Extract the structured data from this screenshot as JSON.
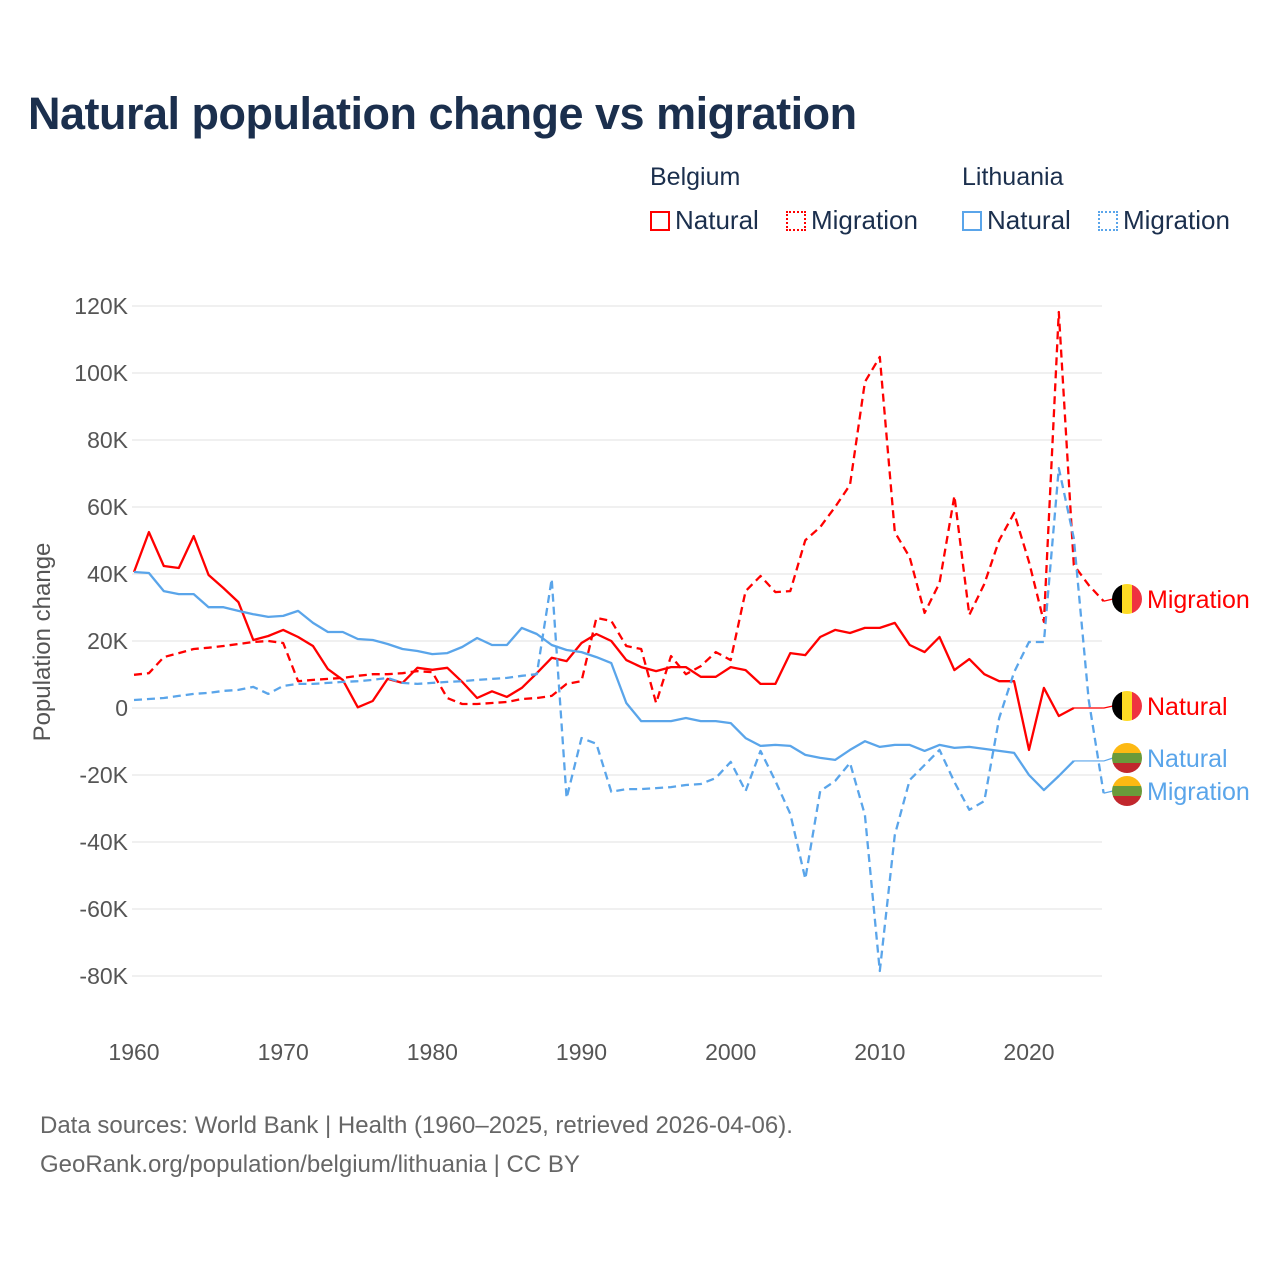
{
  "title": "Natural population change vs migration",
  "legend": {
    "groups": [
      {
        "name": "Belgium",
        "color": "#ff0000",
        "items": [
          "Natural",
          "Migration"
        ]
      },
      {
        "name": "Lithuania",
        "color": "#5aa5ea",
        "items": [
          "Natural",
          "Migration"
        ]
      }
    ]
  },
  "footer": {
    "line1": "Data sources: World Bank | Health (1960–2025, retrieved 2026-04-06).",
    "line2": "GeoRank.org/population/belgium/lithuania | CC BY"
  },
  "chart_data": {
    "type": "line",
    "title": "Natural population change vs migration",
    "xlabel": "",
    "ylabel": "Population change",
    "xlim": [
      1960,
      2025
    ],
    "ylim": [
      -90000,
      125000
    ],
    "xticks": [
      1960,
      1970,
      1980,
      1990,
      2000,
      2010,
      2020
    ],
    "yticks": [
      {
        "v": 120000,
        "label": "120K"
      },
      {
        "v": 100000,
        "label": "100K"
      },
      {
        "v": 80000,
        "label": "80K"
      },
      {
        "v": 60000,
        "label": "60K"
      },
      {
        "v": 40000,
        "label": "40K"
      },
      {
        "v": 20000,
        "label": "20K"
      },
      {
        "v": 0,
        "label": "0"
      },
      {
        "v": -20000,
        "label": "-20K"
      },
      {
        "v": -40000,
        "label": "-40K"
      },
      {
        "v": -60000,
        "label": "-60K"
      },
      {
        "v": -80000,
        "label": "-80K"
      }
    ],
    "grid": true,
    "legend_position": "top-right",
    "series": [
      {
        "name": "Belgium Natural",
        "end_label": "Natural",
        "country": "belgium",
        "color": "#ff0000",
        "dashed": false,
        "start": 1960,
        "values": [
          40.6,
          52.5,
          42.4,
          41.8,
          51.3,
          39.7,
          35.8,
          31.6,
          20.3,
          21.5,
          23.3,
          21.2,
          18.5,
          11.6,
          8.4,
          0.2,
          2.1,
          8.7,
          7.5,
          12,
          11.4,
          12,
          7.8,
          3,
          5,
          3.3,
          6,
          10.4,
          15,
          14,
          19.4,
          22.1,
          20,
          14.3,
          12.2,
          11,
          12.2,
          12.2,
          9.3,
          9.3,
          12.2,
          11.3,
          7.2,
          7.2,
          16.4,
          15.8,
          21.2,
          23.3,
          22.4,
          23.9,
          23.9,
          25.4,
          18.8,
          16.7,
          21.2,
          11.3,
          14.6,
          10.1,
          8,
          8,
          -12.5,
          6,
          -2.4,
          0
        ]
      },
      {
        "name": "Belgium Migration",
        "end_label": "Migration",
        "country": "belgium",
        "color": "#ff0000",
        "dashed": true,
        "start": 1960,
        "values": [
          9.9,
          10.4,
          15.2,
          16.4,
          17.6,
          18,
          18.5,
          19.1,
          19.7,
          20,
          19.4,
          8,
          8.4,
          8.7,
          9,
          9.6,
          10.1,
          10.1,
          10.4,
          11,
          10.7,
          3,
          1.2,
          1.2,
          1.5,
          1.8,
          2.7,
          3,
          3.6,
          7.2,
          8,
          26.9,
          26,
          18.5,
          17.6,
          1.5,
          15.5,
          10.1,
          12.5,
          16.7,
          14.3,
          34.9,
          39.4,
          34.6,
          34.9,
          50.1,
          54,
          60,
          66.6,
          97.3,
          104.8,
          52.5,
          45,
          28.4,
          37.3,
          63.3,
          27.8,
          37,
          50.1,
          58.2,
          43.6,
          25.7,
          118.2,
          42.7,
          36.7,
          31.9
        ]
      },
      {
        "name": "Lithuania Natural",
        "end_label": "Natural",
        "country": "lithuania",
        "color": "#5aa5ea",
        "dashed": false,
        "start": 1960,
        "values": [
          40.6,
          40.3,
          34.9,
          34,
          34,
          30.1,
          30.1,
          29,
          28,
          27.2,
          27.5,
          29,
          25.4,
          22.7,
          22.7,
          20.6,
          20.3,
          19.1,
          17.6,
          17,
          16.1,
          16.4,
          18.2,
          20.9,
          18.8,
          18.8,
          23.9,
          22.1,
          18.8,
          17.3,
          16.7,
          15.2,
          13.4,
          1.5,
          -3.9,
          -3.9,
          -3.9,
          -3,
          -3.9,
          -3.9,
          -4.5,
          -9,
          -11.3,
          -11,
          -11.3,
          -14,
          -14.9,
          -15.5,
          -12.5,
          -9.9,
          -11.6,
          -11,
          -11,
          -12.8,
          -11,
          -11.9,
          -11.6,
          -12.2,
          -12.8,
          -13.4,
          -20,
          -24.5,
          -20.3,
          -15.8
        ]
      },
      {
        "name": "Lithuania Migration",
        "end_label": "Migration",
        "country": "lithuania",
        "color": "#5aa5ea",
        "dashed": true,
        "start": 1960,
        "values": [
          2.4,
          2.7,
          3,
          3.6,
          4.2,
          4.5,
          5.1,
          5.4,
          6.3,
          4.2,
          6.6,
          7.2,
          7.2,
          7.5,
          7.8,
          8,
          8.4,
          9,
          7.5,
          7.2,
          7.5,
          7.8,
          8,
          8.4,
          8.7,
          9,
          9.6,
          10.1,
          38.5,
          -26.9,
          -9,
          -10.7,
          -25,
          -24.2,
          -24.2,
          -23.9,
          -23.6,
          -23,
          -22.7,
          -20.9,
          -16.1,
          -24.8,
          -12.8,
          -21.8,
          -31.6,
          -51,
          -24.8,
          -21.8,
          -16.4,
          -31.9,
          -78.5,
          -37.9,
          -21.5,
          -17,
          -12.5,
          -22.1,
          -30.4,
          -27.8,
          -3,
          10.7,
          19.7,
          19.7,
          71.6,
          50.7,
          2.4,
          -25.4
        ]
      }
    ],
    "value_unit": "thousands"
  }
}
